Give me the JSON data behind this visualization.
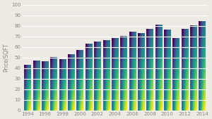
{
  "years": [
    1994,
    1995,
    1996,
    1997,
    1998,
    1999,
    2000,
    2001,
    2002,
    2003,
    2004,
    2005,
    2006,
    2007,
    2008,
    2009,
    2010,
    2011,
    2012,
    2013,
    2014
  ],
  "values": [
    43,
    47,
    46,
    50,
    48,
    53,
    57,
    63,
    65,
    66,
    68,
    70,
    74,
    73,
    77,
    81,
    76,
    68,
    77,
    80,
    84
  ],
  "bar_color_top": "#0d3a52",
  "bar_color_bottom": "#5a9bbf",
  "ylabel": "Price/SQFT",
  "ylim": [
    0,
    100
  ],
  "yticks": [
    0,
    10,
    20,
    30,
    40,
    50,
    60,
    70,
    80,
    90,
    100
  ],
  "background_color": "#edeae4",
  "grid_color": "#ffffff",
  "tick_color": "#888888",
  "ylabel_fontsize": 5.5,
  "tick_fontsize": 5.0
}
